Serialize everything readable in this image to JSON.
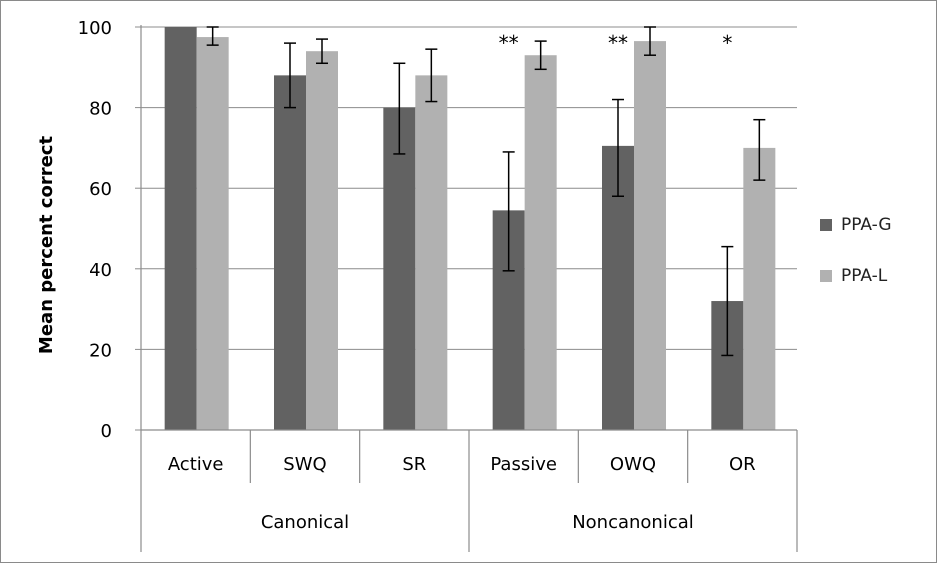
{
  "chart_data": {
    "type": "bar",
    "title": "",
    "xlabel": "",
    "ylabel": "Mean percent correct",
    "ylim": [
      0,
      100
    ],
    "yticks": [
      0,
      20,
      40,
      60,
      80,
      100
    ],
    "grid": true,
    "legend_position": "right",
    "categories": [
      "Active",
      "SWQ",
      "SR",
      "Passive",
      "OWQ",
      "OR"
    ],
    "groups": [
      {
        "label": "Canonical",
        "categories": [
          "Active",
          "SWQ",
          "SR"
        ]
      },
      {
        "label": "Noncanonical",
        "categories": [
          "Passive",
          "OWQ",
          "OR"
        ]
      }
    ],
    "series": [
      {
        "name": "PPA-G",
        "color": "#626262",
        "values": [
          100,
          88,
          80,
          54.5,
          70.5,
          32
        ],
        "error_low": [
          100,
          80,
          68.5,
          39.5,
          58,
          18.5
        ],
        "error_high": [
          100,
          96,
          91,
          69,
          82,
          45.5
        ]
      },
      {
        "name": "PPA-L",
        "color": "#b1b1b1",
        "values": [
          97.5,
          94,
          88,
          93,
          96.5,
          70
        ],
        "error_low": [
          95.5,
          91,
          81.5,
          89.5,
          93,
          62
        ],
        "error_high": [
          100,
          97,
          94.5,
          96.5,
          100,
          77
        ]
      }
    ],
    "annotations": [
      {
        "category": "Passive",
        "text": "**"
      },
      {
        "category": "OWQ",
        "text": "**"
      },
      {
        "category": "OR",
        "text": "*"
      }
    ]
  }
}
